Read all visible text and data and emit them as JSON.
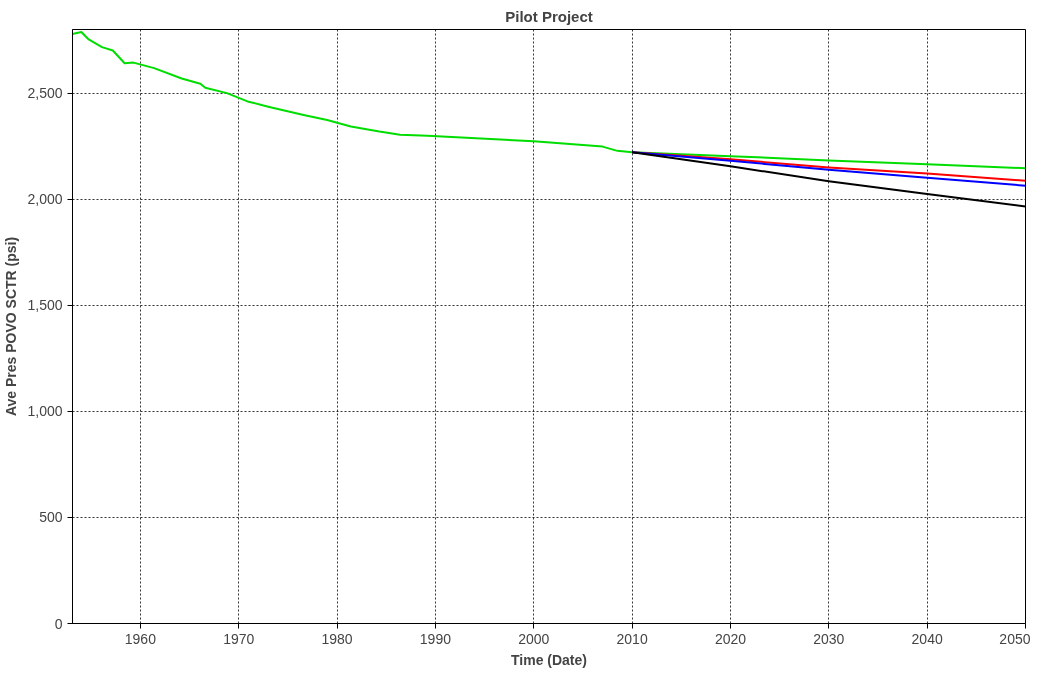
{
  "chart_data": {
    "type": "line",
    "title": "Pilot Project",
    "xlabel": "Time (Date)",
    "ylabel": "Ave Pres POVO SCTR (psi)",
    "xlim": [
      1953.1,
      2050
    ],
    "xticks": [
      1960,
      1970,
      1980,
      1990,
      2000,
      2010,
      2020,
      2030,
      2040,
      2050
    ],
    "ylim": [
      0,
      2800
    ],
    "yticks": [
      0,
      500,
      {
        "value": 1000,
        "label": "1,000"
      },
      {
        "value": 1500,
        "label": "1,500"
      },
      {
        "value": 2000,
        "label": "2,000"
      },
      {
        "value": 2500,
        "label": "2,500"
      }
    ],
    "grid": true,
    "line_style": "solid",
    "marker": "none",
    "series": [
      {
        "color": "#00dd00",
        "x": [
          1953.1,
          1954.0,
          1954.7,
          1956.1,
          1957.2,
          1958.4,
          1959.3,
          1961.4,
          1964.2,
          1966.1,
          1966.6,
          1968.8,
          1970.9,
          1973.0,
          1976.6,
          1979.0,
          1981.4,
          1984.3,
          1986.4,
          1989.2,
          2000,
          2007,
          2008.5,
          2010,
          2020,
          2030,
          2040,
          2050
        ],
        "values": [
          2779,
          2788,
          2755,
          2717,
          2701,
          2641,
          2644,
          2618,
          2569,
          2544,
          2525,
          2500,
          2461,
          2436,
          2397,
          2373,
          2343,
          2319,
          2304,
          2299,
          2273,
          2248,
          2228,
          2221,
          2203,
          2183,
          2165,
          2146
        ]
      },
      {
        "color": "#ff0000",
        "x": [
          2010,
          2020,
          2030,
          2040,
          2050
        ],
        "values": [
          2221,
          2188,
          2150,
          2121,
          2087
        ]
      },
      {
        "color": "#0000ff",
        "x": [
          2010,
          2020,
          2030,
          2040,
          2050
        ],
        "values": [
          2221,
          2181,
          2139,
          2101,
          2064
        ]
      },
      {
        "color": "#000000",
        "x": [
          2010,
          2020,
          2030,
          2040,
          2050
        ],
        "values": [
          2221,
          2155,
          2085,
          2025,
          1966
        ]
      }
    ]
  }
}
